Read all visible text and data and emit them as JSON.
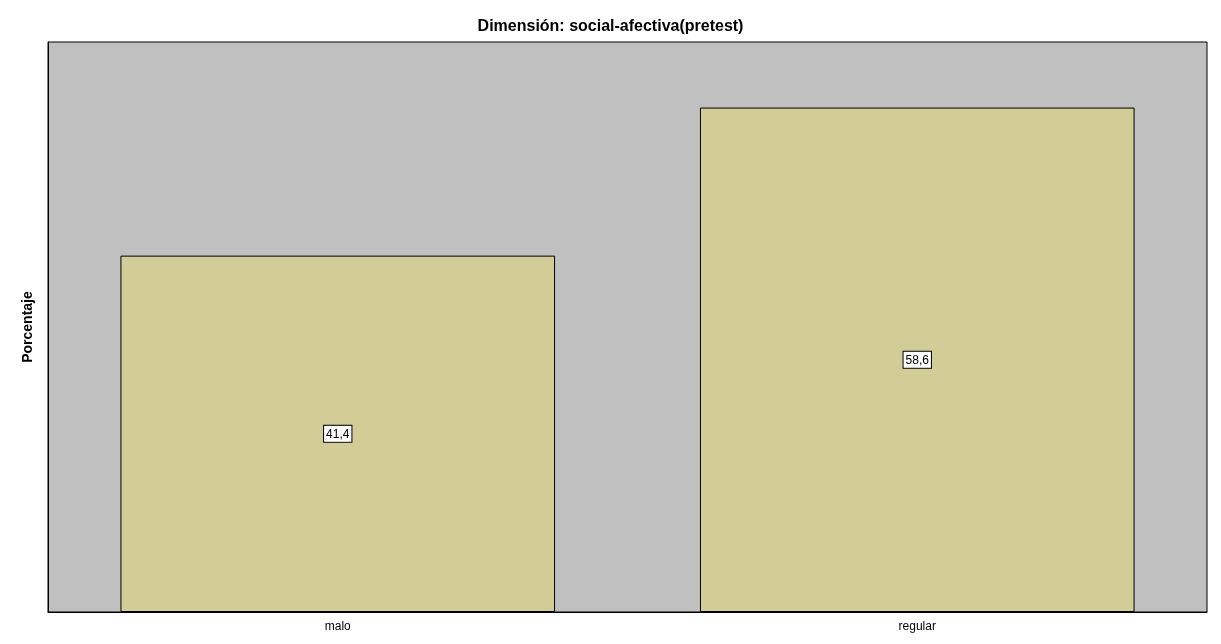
{
  "chart_data": {
    "type": "bar",
    "title": "Dimensión: social-afectiva(pretest)",
    "ylabel": "Porcentaje",
    "categories": [
      "malo",
      "regular"
    ],
    "values": [
      41.4,
      58.6
    ],
    "value_labels": [
      "41,4",
      "58,6"
    ],
    "color": "#d2cc96",
    "grid": false
  }
}
